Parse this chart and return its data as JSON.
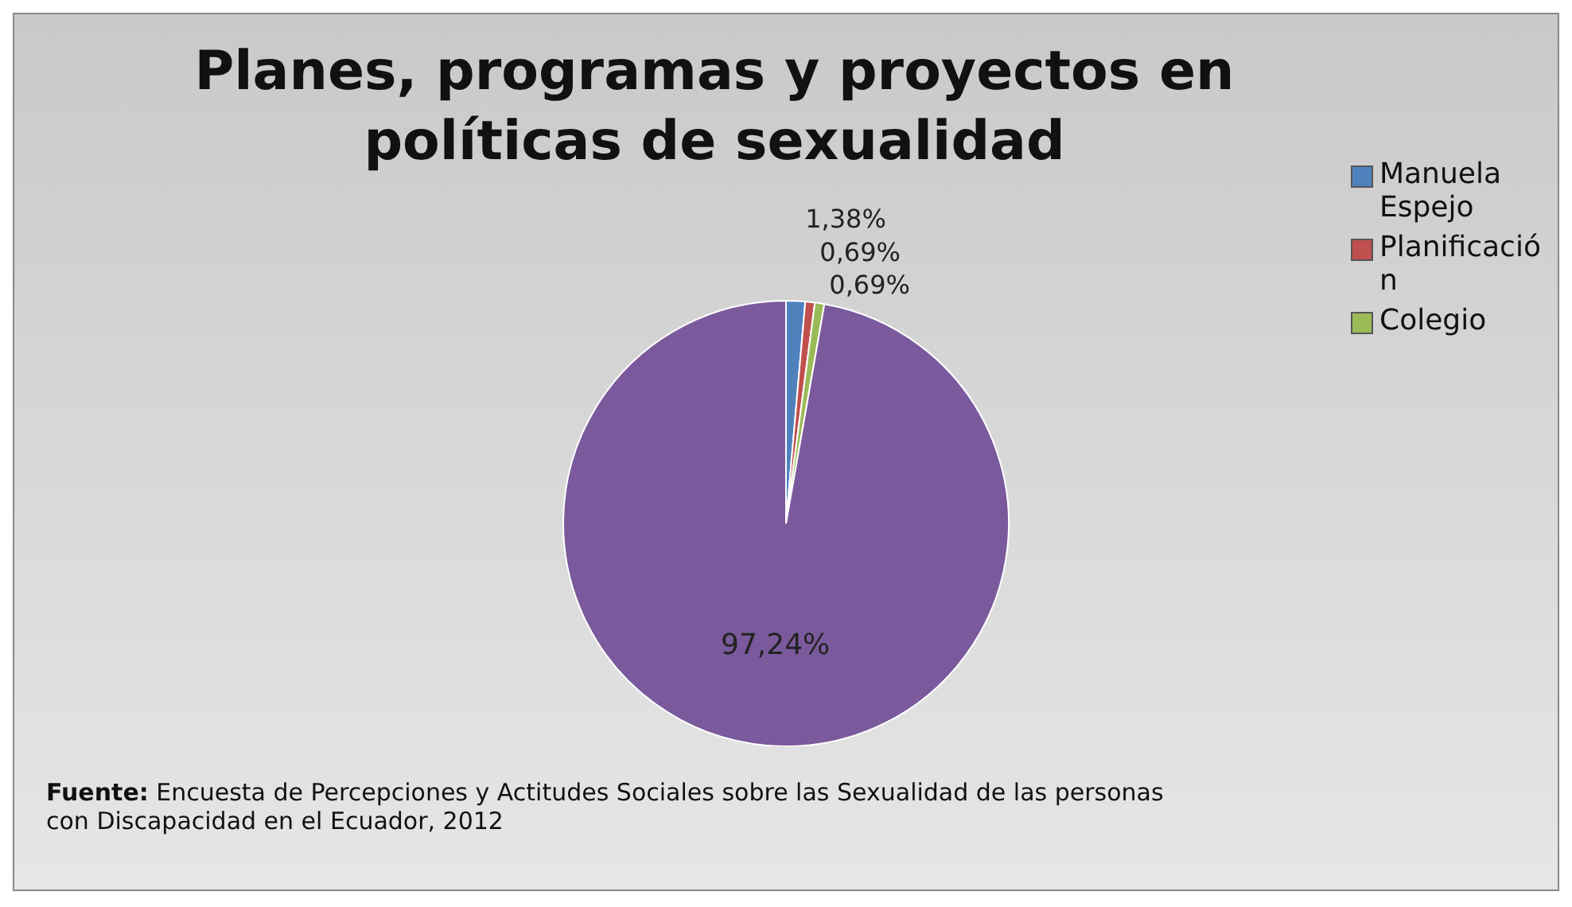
{
  "chart_data": {
    "type": "pie",
    "title": "Planes, programas y proyectos en políticas de sexualidad",
    "categories": [
      "Manuela Espejo",
      "Planificación",
      "Colegio",
      null
    ],
    "values": [
      1.38,
      0.69,
      0.69,
      97.24
    ],
    "value_labels": [
      "1,38%",
      "0,69%",
      "0,69%",
      "97,24%"
    ],
    "colors": [
      "#4f81bd",
      "#c0504d",
      "#9bbb59",
      "#7a5a9c"
    ],
    "legend": "right",
    "annotations": [
      "Fuente: Encuesta de Percepciones y Actitudes Sociales sobre las Sexualidad de las personas con Discapacidad en el Ecuador, 2012"
    ]
  }
}
